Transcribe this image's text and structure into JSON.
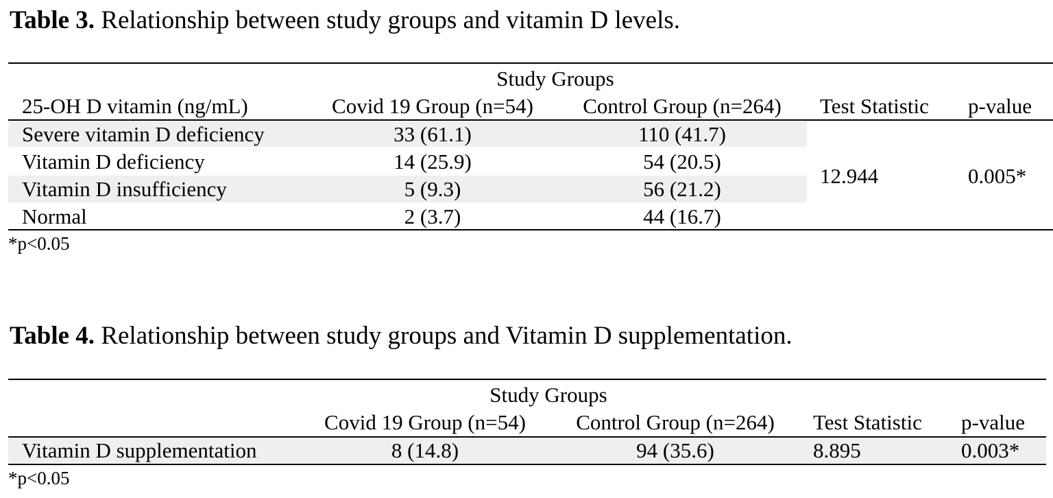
{
  "table3": {
    "caption_label": "Table 3.",
    "caption_text": " Relationship between study groups and vitamin D levels.",
    "group_header": "Study Groups",
    "columns": [
      "25-OH D vitamin (ng/mL)",
      "Covid 19 Group (n=54)",
      "Control Group (n=264)",
      "Test Statistic",
      "p-value"
    ],
    "rows": [
      {
        "label": "Severe vitamin D deficiency",
        "covid": "33 (61.1)",
        "control": "110 (41.7)"
      },
      {
        "label": "Vitamin D deficiency",
        "covid": "14 (25.9)",
        "control": "54 (20.5)"
      },
      {
        "label": "Vitamin D insufficiency",
        "covid": "5 (9.3)",
        "control": "56 (21.2)"
      },
      {
        "label": "Normal",
        "covid": "2 (3.7)",
        "control": "44 (16.7)"
      }
    ],
    "test_statistic": "12.944",
    "p_value": "0.005*",
    "footnote": "*p<0.05"
  },
  "table4": {
    "caption_label": "Table 4.",
    "caption_text": " Relationship between study groups and Vitamin D supplementation.",
    "group_header": "Study Groups",
    "columns": [
      "",
      "Covid 19 Group (n=54)",
      "Control Group (n=264)",
      "Test Statistic",
      "p-value"
    ],
    "rows": [
      {
        "label": "Vitamin D supplementation",
        "covid": "8 (14.8)",
        "control": "94 (35.6)",
        "test_statistic": "8.895",
        "p_value": "0.003*"
      }
    ],
    "footnote": "*p<0.05"
  }
}
